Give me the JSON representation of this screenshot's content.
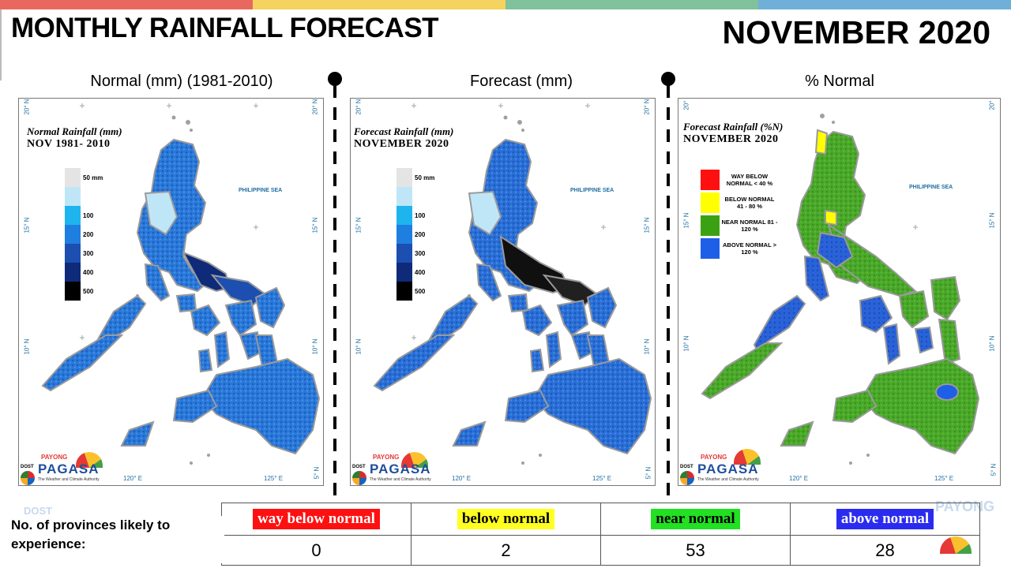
{
  "header": {
    "title": "MONTHLY RAINFALL FORECAST",
    "month": "NOVEMBER 2020",
    "top_bar_colors": [
      "#e8685f",
      "#f4d35e",
      "#7fc29b",
      "#70b0d8"
    ]
  },
  "panels": [
    {
      "label": "Normal (mm) (1981-2010)",
      "map_title_line1": "Normal Rainfall (mm)",
      "map_title_line2": "NOV 1981- 2010",
      "legend": [
        {
          "label": "50 mm",
          "color": "#e4e4e4"
        },
        {
          "label": "",
          "color": "#bfe6f7"
        },
        {
          "label": "100",
          "color": "#1eb4ee"
        },
        {
          "label": "200",
          "color": "#1e7fe0"
        },
        {
          "label": "300",
          "color": "#1c4fb0"
        },
        {
          "label": "400",
          "color": "#0e2a78"
        },
        {
          "label": "500",
          "color": "#000000"
        }
      ],
      "sea_label": "PHILIPPINE SEA"
    },
    {
      "label": "Forecast (mm)",
      "map_title_line1": "Forecast Rainfall (mm)",
      "map_title_line2": "NOVEMBER 2020",
      "legend": [
        {
          "label": "50 mm",
          "color": "#e4e4e4"
        },
        {
          "label": "",
          "color": "#bfe6f7"
        },
        {
          "label": "100",
          "color": "#1eb4ee"
        },
        {
          "label": "200",
          "color": "#1e7fe0"
        },
        {
          "label": "300",
          "color": "#1c4fb0"
        },
        {
          "label": "400",
          "color": "#0e2a78"
        },
        {
          "label": "500",
          "color": "#000000"
        }
      ],
      "sea_label": "PHILIPPINE SEA"
    },
    {
      "label": "% Normal",
      "map_title_line1": "Forecast Rainfall (%N)",
      "map_title_line2": "NOVEMBER 2020",
      "legend": [
        {
          "label": "WAY BELOW NORMAL < 40 %",
          "color": "#ff1010"
        },
        {
          "label": "BELOW NORMAL 41 - 80 %",
          "color": "#ffff00"
        },
        {
          "label": "NEAR NORMAL 81 - 120 %",
          "color": "#3aa212"
        },
        {
          "label": "ABOVE NORMAL > 120 %",
          "color": "#1e5fe8"
        }
      ],
      "sea_label": "PHILIPPINE SEA"
    }
  ],
  "axes": {
    "lat_labels": [
      "20° N",
      "15° N",
      "10° N",
      "5° N"
    ],
    "lon_labels": [
      "120° E",
      "125° E"
    ]
  },
  "logo": {
    "dost": "DOST",
    "payong": "PAYONG",
    "name": "PAGASA",
    "tagline": "The Weather and Climate Authority"
  },
  "provinces": {
    "label": "No. of provinces likely to experience:",
    "categories": [
      {
        "name": "way below normal",
        "count": "0",
        "bg": "#ff1010",
        "fg": "#ffffff"
      },
      {
        "name": "below normal",
        "count": "2",
        "bg": "#ffff22",
        "fg": "#000000"
      },
      {
        "name": "near normal",
        "count": "53",
        "bg": "#22e022",
        "fg": "#000000"
      },
      {
        "name": "above normal",
        "count": "28",
        "bg": "#2b2bf0",
        "fg": "#ffffff"
      }
    ]
  }
}
